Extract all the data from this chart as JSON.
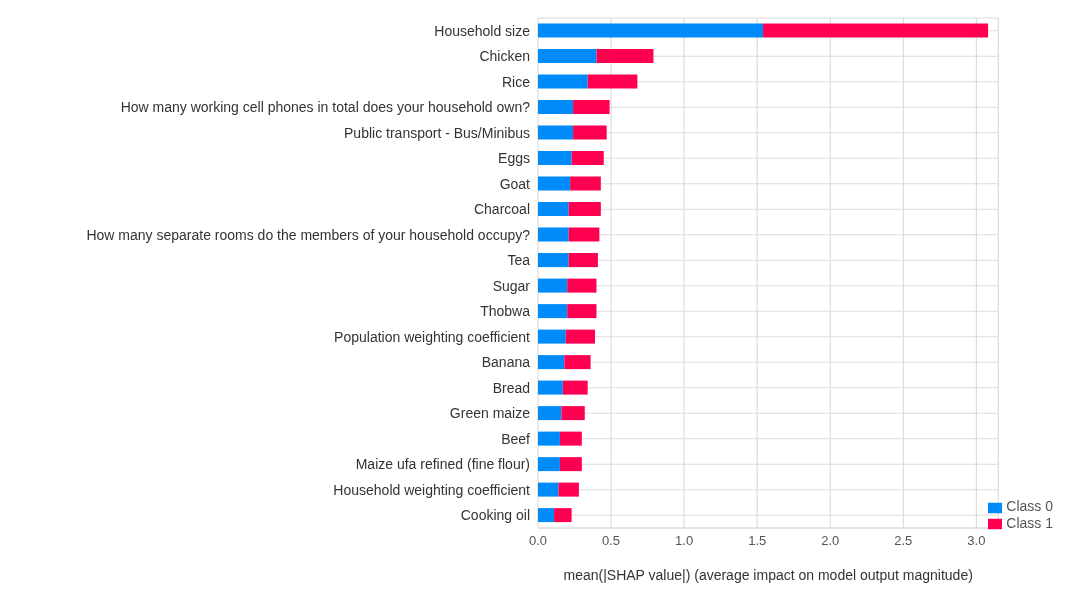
{
  "chart_data": {
    "type": "bar",
    "orientation": "horizontal",
    "stacked": true,
    "xlabel": "mean(|SHAP value|) (average impact on model output magnitude)",
    "categories": [
      "Household size",
      "Chicken",
      "Rice",
      "How many working cell phones in total does your household own?",
      "Public transport - Bus/Minibus",
      "Eggs",
      "Goat",
      "Charcoal",
      "How many separate rooms do the members of your household occupy?",
      "Tea",
      "Sugar",
      "Thobwa",
      "Population weighting coefficient",
      "Banana",
      "Bread",
      "Green maize",
      "Beef",
      "Maize ufa refined (fine flour)",
      "Household weighting coefficient",
      "Cooking oil"
    ],
    "series": [
      {
        "name": "Class 0",
        "color": "#008bfb",
        "values": [
          1.54,
          0.4,
          0.34,
          0.24,
          0.24,
          0.23,
          0.22,
          0.21,
          0.21,
          0.21,
          0.2,
          0.2,
          0.19,
          0.18,
          0.17,
          0.16,
          0.15,
          0.15,
          0.14,
          0.11
        ]
      },
      {
        "name": "Class 1",
        "color": "#ff0051",
        "values": [
          1.54,
          0.39,
          0.34,
          0.25,
          0.23,
          0.22,
          0.21,
          0.22,
          0.21,
          0.2,
          0.2,
          0.2,
          0.2,
          0.18,
          0.17,
          0.16,
          0.15,
          0.15,
          0.14,
          0.12
        ]
      }
    ],
    "xlim": [
      0,
      3.15
    ],
    "xticks": [
      {
        "value": 0,
        "label": "0.0"
      },
      0.5,
      {
        "value": 1,
        "label": "1.0"
      },
      1.5,
      {
        "value": 2,
        "label": "2.0"
      },
      2.5,
      {
        "value": 3,
        "label": "3.0"
      }
    ],
    "grid": true,
    "legend": "bottom right"
  }
}
